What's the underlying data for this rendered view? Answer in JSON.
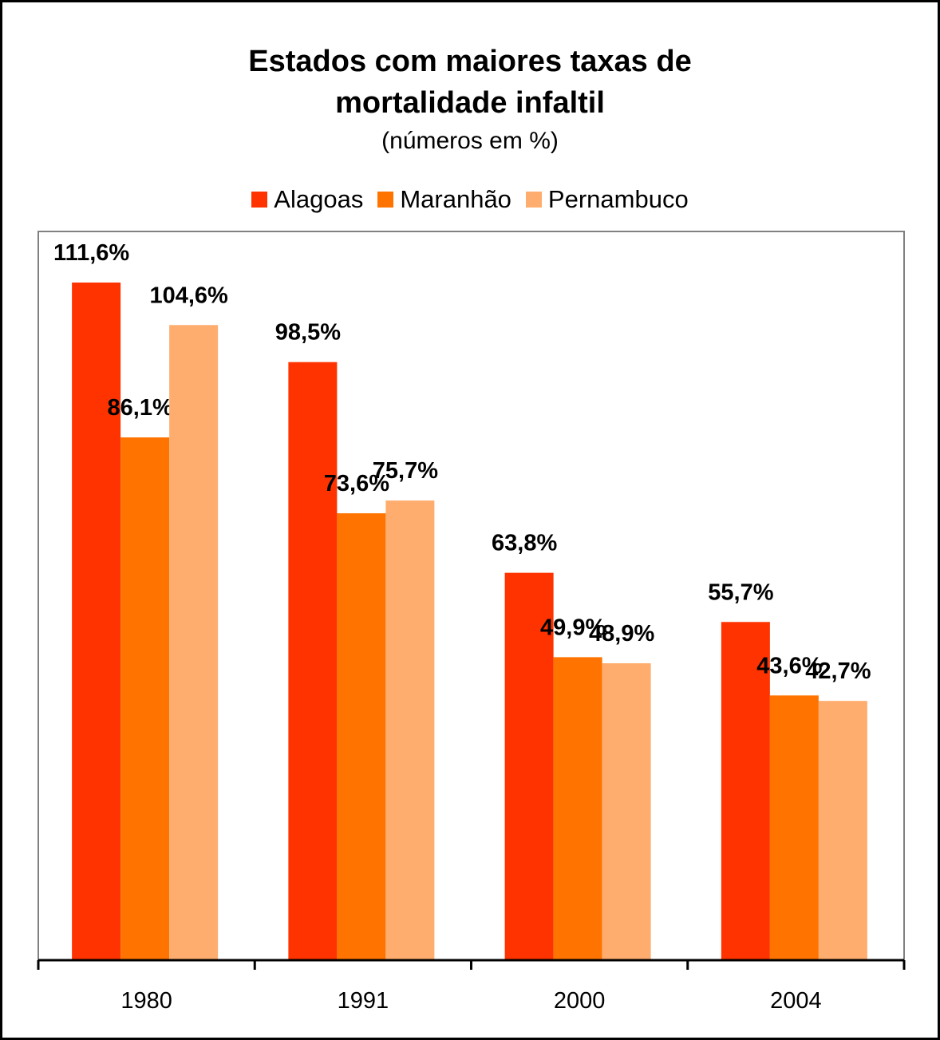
{
  "chart_data": {
    "type": "bar",
    "title_line1": "Estados com maiores taxas de",
    "title_line2": "mortalidade infaltil",
    "subtitle": "(números em %)",
    "categories": [
      "1980",
      "1991",
      "2000",
      "2004"
    ],
    "series": [
      {
        "name": "Alagoas",
        "color": "#ff3300",
        "values": [
          111.6,
          98.5,
          63.8,
          55.7
        ],
        "labels": [
          "111,6%",
          "98,5%",
          "63,8%",
          "55,7%"
        ]
      },
      {
        "name": "Maranhão",
        "color": "#ff7300",
        "values": [
          86.1,
          73.6,
          49.9,
          43.6
        ],
        "labels": [
          "86,1%",
          "73,6%",
          "49,9%",
          "43,6%"
        ]
      },
      {
        "name": "Pernambuco",
        "color": "#ffad6e",
        "values": [
          104.6,
          75.7,
          48.9,
          42.7
        ],
        "labels": [
          "104,6%",
          "75,7%",
          "48,9%",
          "42,7%"
        ]
      }
    ],
    "ylim": [
      0,
      120
    ],
    "grid": false,
    "legend_position": "top"
  }
}
